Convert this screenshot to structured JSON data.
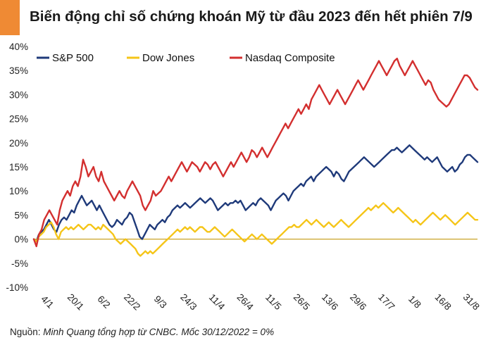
{
  "header": {
    "title": "Biến động chỉ số chứng khoán Mỹ từ đầu 2023 đến hết phiên 7/9",
    "accent_color": "#ef8a34"
  },
  "source": {
    "prefix": "Nguồn: ",
    "text": "Minh Quang tổng hợp từ CNBC. Mốc 30/12/2022 = 0%"
  },
  "chart_data": {
    "type": "line",
    "title": "Biến động chỉ số chứng khoán Mỹ từ đầu 2023 đến hết phiên 7/9",
    "ylim": [
      -10,
      40
    ],
    "yticks": [
      40,
      35,
      30,
      25,
      20,
      15,
      10,
      5,
      0,
      -5,
      -10
    ],
    "ytick_labels": [
      "40%",
      "35%",
      "30%",
      "25%",
      "20%",
      "15%",
      "10%",
      "5%",
      "0%",
      "-5%",
      "-10%"
    ],
    "x_tick_labels": [
      "4/1",
      "20/1",
      "6/2",
      "22/2",
      "9/3",
      "24/3",
      "11/4",
      "26/4",
      "11/5",
      "26/5",
      "13/6",
      "29/6",
      "17/7",
      "1/8",
      "16/8",
      "31/8"
    ],
    "x_start_label": "30/12/2022",
    "legend_position": "top-left",
    "grid": false,
    "series": [
      {
        "name": "S&P 500",
        "color": "#1f3a7a",
        "values": [
          0,
          -0.5,
          1,
          1.5,
          2,
          3,
          4,
          3,
          2,
          1.5,
          3,
          4,
          4.5,
          4,
          5,
          6,
          5.5,
          7,
          8,
          9,
          8,
          7,
          7.5,
          8,
          7,
          6,
          7,
          6,
          5,
          4,
          3,
          2.5,
          3,
          4,
          3.5,
          3,
          4,
          4.5,
          5.5,
          5,
          3.5,
          2,
          0.5,
          0,
          1,
          2,
          3,
          2.5,
          2,
          3,
          3.5,
          4,
          3.5,
          4.5,
          5,
          6,
          6.5,
          7,
          6.5,
          7,
          7.5,
          7,
          6.5,
          7,
          7.5,
          8,
          8.5,
          8,
          7.5,
          8,
          8.5,
          8,
          7,
          6,
          6.5,
          7,
          7.5,
          7,
          7.5,
          7.5,
          8,
          7.5,
          8,
          7,
          6,
          6.5,
          7,
          7.5,
          7,
          8,
          8.5,
          8,
          7.5,
          7,
          6,
          7,
          8,
          8.5,
          9,
          9.5,
          9,
          8,
          9,
          10,
          10.5,
          11,
          11.5,
          11,
          12,
          12.5,
          13,
          12,
          13,
          13.5,
          14,
          14.5,
          15,
          14.5,
          14,
          13,
          14,
          13.5,
          12.5,
          12,
          13,
          14,
          14.5,
          15,
          15.5,
          16,
          16.5,
          17,
          16.5,
          16,
          15.5,
          15,
          15.5,
          16,
          16.5,
          17,
          17.5,
          18,
          18.5,
          18.5,
          19,
          18.5,
          18,
          18.5,
          19,
          19.5,
          19,
          18.5,
          18,
          17.5,
          17,
          16.5,
          17,
          16.5,
          16,
          16.5,
          17,
          16,
          15,
          14.5,
          14,
          14.5,
          15,
          14,
          14.5,
          15.5,
          16,
          17,
          17.5,
          17.5,
          17,
          16.5,
          16
        ]
      },
      {
        "name": "Dow Jones",
        "color": "#f5c518",
        "values": [
          0,
          -0.5,
          0.5,
          1,
          1.5,
          2.5,
          3,
          3.5,
          2.5,
          1,
          0,
          1.5,
          2,
          2.5,
          2,
          2.5,
          2,
          2.5,
          3,
          2.5,
          2,
          2.5,
          3,
          3,
          2.5,
          2,
          2.5,
          2,
          3,
          2.5,
          2,
          1.5,
          1,
          0,
          -0.5,
          -1,
          -0.5,
          0,
          -0.5,
          -1,
          -1.5,
          -2,
          -3,
          -3.5,
          -3,
          -2.5,
          -3,
          -2.5,
          -3,
          -2.5,
          -2,
          -1.5,
          -1,
          -0.5,
          0,
          0.5,
          1,
          1.5,
          2,
          1.5,
          2,
          2.5,
          2,
          2.5,
          2,
          1.5,
          2,
          2.5,
          2.5,
          2,
          1.5,
          1.5,
          2,
          2.5,
          2,
          1.5,
          1,
          0.5,
          1,
          1.5,
          2,
          1.5,
          1,
          0.5,
          0,
          -0.5,
          0,
          0.5,
          1,
          0.5,
          0,
          0.5,
          1,
          0.5,
          0,
          -0.5,
          -1,
          -0.5,
          0,
          0.5,
          1,
          1.5,
          2,
          2.5,
          2.5,
          3,
          2.5,
          2.5,
          3,
          3.5,
          4,
          3.5,
          3,
          3.5,
          4,
          3.5,
          3,
          2.5,
          3,
          3.5,
          3,
          2.5,
          3,
          3.5,
          4,
          3.5,
          3,
          2.5,
          3,
          3.5,
          4,
          4.5,
          5,
          5.5,
          6,
          6.5,
          6,
          6.5,
          7,
          6.5,
          7,
          7.5,
          7,
          6.5,
          6,
          5.5,
          6,
          6.5,
          6,
          5.5,
          5,
          4.5,
          4,
          3.5,
          4,
          3.5,
          3,
          3.5,
          4,
          4.5,
          5,
          5.5,
          5,
          4.5,
          4,
          4.5,
          5,
          4.5,
          4,
          3.5,
          3,
          3.5,
          4,
          4.5,
          5,
          5.5,
          5,
          4.5,
          4,
          4
        ]
      },
      {
        "name": "Nasdaq Composite",
        "color": "#d32f2f",
        "values": [
          0,
          -1.5,
          1,
          2,
          4,
          5,
          6,
          5,
          4,
          3,
          6,
          8,
          9,
          10,
          9,
          11,
          12,
          11,
          13,
          16.5,
          15,
          13,
          14,
          15,
          13,
          12,
          14,
          12,
          11,
          10,
          9,
          8,
          9,
          10,
          9,
          8.5,
          10,
          11,
          12,
          11,
          10,
          9,
          7,
          6,
          7,
          8,
          10,
          9,
          9.5,
          10,
          11,
          12,
          13,
          12,
          13,
          14,
          15,
          16,
          15,
          14,
          15,
          16,
          15.5,
          15,
          14,
          15,
          16,
          15.5,
          14.5,
          15.5,
          16,
          15,
          14,
          13,
          14,
          15,
          16,
          15,
          16,
          17,
          18,
          17,
          16,
          17,
          18.5,
          18,
          17,
          18,
          19,
          18,
          17,
          18,
          19,
          20,
          21,
          22,
          23,
          24,
          23,
          24,
          25,
          26,
          27,
          26,
          27,
          28,
          27,
          29,
          30,
          31,
          32,
          31,
          30,
          29,
          28,
          29,
          30,
          31,
          30,
          29,
          28,
          29,
          30,
          31,
          32,
          33,
          32,
          31,
          32,
          33,
          34,
          35,
          36,
          37,
          36,
          35,
          34,
          35,
          36,
          37,
          37.5,
          36,
          35,
          34,
          35,
          36,
          37,
          36,
          35,
          34,
          33,
          32,
          33,
          32.5,
          31,
          30,
          29,
          28.5,
          28,
          27.5,
          28,
          29,
          30,
          31,
          32,
          33,
          34,
          34,
          33.5,
          32.5,
          31.5,
          31
        ]
      }
    ]
  }
}
